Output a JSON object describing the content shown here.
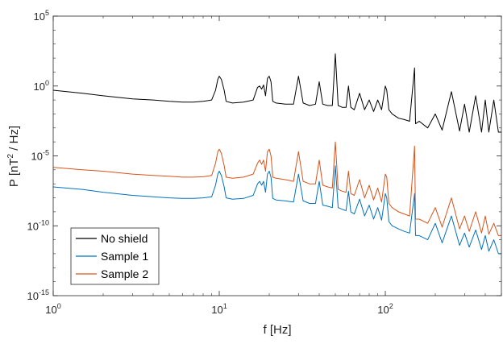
{
  "chart_data": {
    "type": "line",
    "title": "",
    "xlabel": "f [Hz]",
    "ylabel_prefix": "P [nT",
    "ylabel_sup": "2",
    "ylabel_suffix": " / Hz]",
    "xscale": "log",
    "yscale": "log",
    "xlim": [
      1,
      500
    ],
    "ylim": [
      1e-15,
      100000.0
    ],
    "grid": false,
    "legend_position": "bottom-left",
    "x_ticks": [
      {
        "value": 1,
        "base": "10",
        "exp": "0"
      },
      {
        "value": 10,
        "base": "10",
        "exp": "1"
      },
      {
        "value": 100,
        "base": "10",
        "exp": "2"
      }
    ],
    "y_ticks": [
      {
        "value": 100000.0,
        "base": "10",
        "exp": "5"
      },
      {
        "value": 1,
        "base": "10",
        "exp": "0"
      },
      {
        "value": 1e-05,
        "base": "10",
        "exp": "-5"
      },
      {
        "value": 1e-10,
        "base": "10",
        "exp": "-10"
      },
      {
        "value": 1e-15,
        "base": "10",
        "exp": "-15"
      }
    ],
    "series": [
      {
        "name": "No shield",
        "color": "#000000",
        "x": [
          1,
          1.5,
          2,
          3,
          4,
          5,
          6,
          7,
          8,
          9,
          9.5,
          9.8,
          10,
          10.3,
          10.7,
          11,
          12,
          14,
          16,
          17,
          17.5,
          18,
          18.5,
          19,
          19.5,
          20,
          20.5,
          21,
          22,
          25,
          28,
          30,
          32,
          35,
          38,
          40,
          42,
          45,
          48,
          50,
          52,
          55,
          58,
          60,
          62,
          65,
          70,
          75,
          80,
          85,
          90,
          95,
          100,
          102,
          105,
          110,
          120,
          130,
          140,
          150,
          152,
          160,
          180,
          200,
          220,
          250,
          280,
          300,
          320,
          350,
          380,
          400,
          420,
          450,
          480,
          500
        ],
        "y": [
          0.5,
          0.3,
          0.2,
          0.12,
          0.1,
          0.08,
          0.07,
          0.07,
          0.08,
          0.1,
          0.5,
          3,
          5,
          3,
          0.5,
          0.08,
          0.06,
          0.07,
          0.1,
          0.8,
          1.0,
          0.6,
          1.2,
          0.2,
          3.5,
          5,
          2,
          0.08,
          0.06,
          0.05,
          0.05,
          5,
          0.06,
          0.04,
          0.05,
          2,
          0.05,
          0.04,
          0.04,
          200,
          0.04,
          0.03,
          0.03,
          1,
          0.03,
          0.02,
          0.3,
          0.02,
          0.1,
          0.015,
          0.1,
          0.02,
          1,
          0.5,
          0.02,
          0.01,
          0.005,
          0.004,
          0.003,
          20,
          0.002,
          0.003,
          0.001,
          0.01,
          0.0007,
          0.4,
          0.0006,
          0.05,
          0.0005,
          0.2,
          0.0005,
          0.1,
          0.0005,
          0.1,
          0.0005,
          0.0005
        ]
      },
      {
        "name": "Sample 1",
        "color": "#0072BD",
        "x": [
          1,
          1.5,
          2,
          3,
          4,
          5,
          6,
          7,
          8,
          9,
          9.5,
          9.8,
          10,
          10.3,
          10.7,
          11,
          12,
          14,
          16,
          17,
          17.5,
          18,
          18.5,
          19,
          19.5,
          20,
          20.5,
          21,
          22,
          25,
          28,
          30,
          32,
          35,
          38,
          40,
          42,
          45,
          48,
          50,
          52,
          55,
          58,
          60,
          62,
          65,
          70,
          75,
          80,
          85,
          90,
          95,
          100,
          102,
          105,
          110,
          120,
          130,
          140,
          150,
          152,
          160,
          180,
          200,
          220,
          250,
          280,
          300,
          320,
          350,
          380,
          400,
          420,
          450,
          480,
          500
        ],
        "y": [
          6e-08,
          4e-08,
          2.5e-08,
          1.5e-08,
          1.2e-08,
          1e-08,
          9e-09,
          9e-09,
          1e-08,
          1.2e-08,
          8e-08,
          5e-07,
          8e-07,
          4e-07,
          6e-08,
          1e-08,
          8e-09,
          9e-09,
          1.5e-08,
          1e-07,
          1.5e-07,
          8e-08,
          1.5e-07,
          2.5e-08,
          5e-07,
          8e-07,
          3e-07,
          9e-09,
          7e-09,
          6e-09,
          5e-09,
          5e-07,
          6e-09,
          4e-09,
          4e-09,
          1.5e-07,
          3e-09,
          2.5e-09,
          2e-09,
          2e-06,
          2e-09,
          1.5e-09,
          1.2e-09,
          3e-08,
          1e-09,
          7e-10,
          8e-09,
          5e-10,
          3e-09,
          3e-10,
          2e-09,
          2.5e-10,
          2e-08,
          1e-08,
          2e-10,
          1e-10,
          6e-11,
          4e-11,
          3e-11,
          2e-08,
          2e-11,
          2e-11,
          1e-11,
          1.5e-10,
          6e-12,
          5e-10,
          4e-12,
          3e-11,
          3e-12,
          5e-11,
          2e-12,
          2e-11,
          1.5e-12,
          1e-11,
          1e-12,
          1e-12
        ]
      },
      {
        "name": "Sample 2",
        "color": "#D95319",
        "x": [
          1,
          1.5,
          2,
          3,
          4,
          5,
          6,
          7,
          8,
          9,
          9.5,
          9.8,
          10,
          10.3,
          10.7,
          11,
          12,
          14,
          16,
          17,
          17.5,
          18,
          18.5,
          19,
          19.5,
          20,
          20.5,
          21,
          22,
          25,
          28,
          30,
          32,
          35,
          38,
          40,
          42,
          45,
          48,
          50,
          52,
          55,
          58,
          60,
          62,
          65,
          70,
          75,
          80,
          85,
          90,
          95,
          100,
          102,
          105,
          110,
          120,
          130,
          140,
          150,
          152,
          160,
          180,
          200,
          220,
          250,
          280,
          300,
          320,
          350,
          380,
          400,
          420,
          450,
          480,
          500
        ],
        "y": [
          1.5e-06,
          1e-06,
          8e-07,
          5e-07,
          4e-07,
          3.5e-07,
          3e-07,
          3e-07,
          3.2e-07,
          4e-07,
          3e-06,
          2e-05,
          3e-05,
          1.5e-05,
          2e-06,
          3e-07,
          2.5e-07,
          3e-07,
          5e-07,
          3e-06,
          5e-06,
          2.5e-06,
          5e-06,
          8e-07,
          2e-05,
          3e-05,
          1e-05,
          3e-07,
          2.5e-07,
          2e-07,
          1.5e-07,
          2e-05,
          1.5e-07,
          1e-07,
          1e-07,
          5e-06,
          8e-08,
          6e-08,
          5e-08,
          0.0001,
          4e-08,
          3e-08,
          2.5e-08,
          8e-07,
          2e-08,
          1.5e-08,
          2e-07,
          1e-08,
          8e-08,
          7e-09,
          5e-08,
          5e-09,
          5e-07,
          3e-07,
          4e-09,
          2e-09,
          1e-09,
          7e-10,
          5e-10,
          5e-05,
          3e-10,
          3e-10,
          1.5e-10,
          2e-09,
          8e-11,
          1e-08,
          6e-11,
          5e-10,
          4e-11,
          1e-09,
          3e-11,
          5e-10,
          2.5e-11,
          1.5e-10,
          2e-11,
          2e-11
        ]
      }
    ]
  }
}
